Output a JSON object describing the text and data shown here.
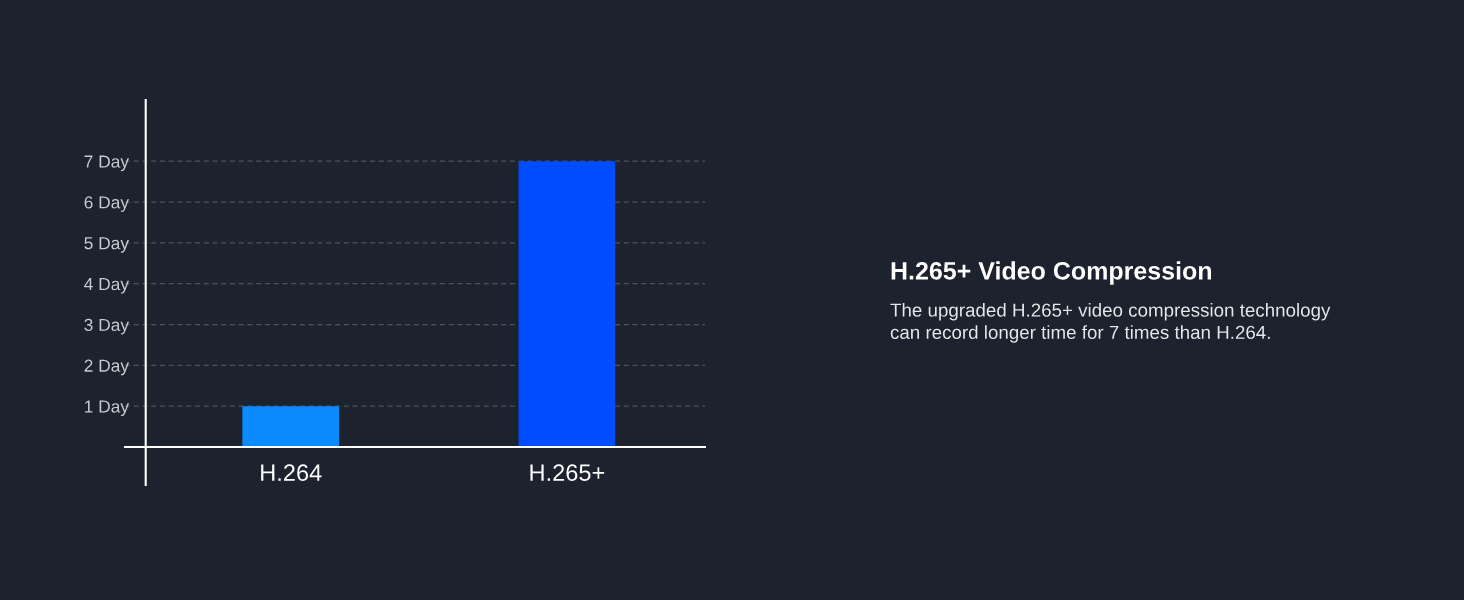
{
  "chart_data": {
    "type": "bar",
    "title": "H.265+ Video Compression",
    "subtitle": "The upgraded H.265+ video compression technology\ncan record longer time for 7 times than H.264.",
    "categories": [
      "H.264",
      "H.265+"
    ],
    "values": [
      1,
      7
    ],
    "colors": [
      "#0a8cff",
      "#004cff"
    ],
    "ylim": [
      -0.93,
      8.5
    ],
    "yticks": [
      {
        "value": 1,
        "label": "1 Day"
      },
      {
        "value": 2,
        "label": "2 Day"
      },
      {
        "value": 3,
        "label": "3 Day"
      },
      {
        "value": 4,
        "label": "4 Day"
      },
      {
        "value": 5,
        "label": "5 Day"
      },
      {
        "value": 6,
        "label": "6 Day"
      },
      {
        "value": 7,
        "label": "7 Day"
      }
    ],
    "grid": "y"
  }
}
